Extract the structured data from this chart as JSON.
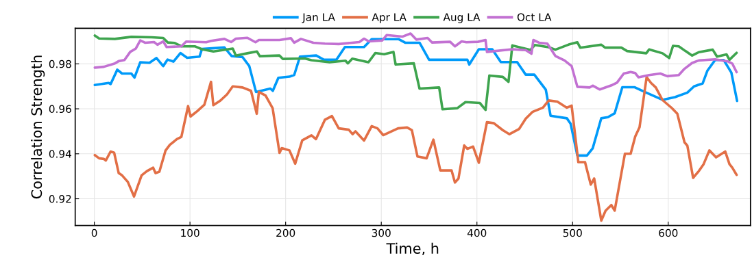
{
  "chart_data": {
    "type": "line",
    "xlabel": "Time, h",
    "ylabel": "Correlation Strength",
    "xlim": [
      -20,
      686
    ],
    "ylim": [
      0.9081,
      0.9958
    ],
    "xticks": [
      0,
      100,
      200,
      300,
      400,
      500,
      600
    ],
    "yticks": [
      0.92,
      0.94,
      0.96,
      0.98
    ],
    "grid": true,
    "legend": "top",
    "line_style": "solid",
    "marker": "none",
    "series": [
      {
        "name": "Jan LA",
        "color": "#009af9",
        "x": [
          0.5,
          15,
          17,
          24,
          29,
          38.6,
          42,
          48,
          57.7,
          65,
          72,
          76.6,
          82.7,
          90,
          97,
          110,
          112.5,
          136,
          143.5,
          155,
          162,
          169,
          184,
          186.6,
          192.4,
          204,
          209,
          215,
          232,
          240,
          253,
          262,
          282,
          290,
          318,
          325,
          340,
          350,
          390,
          392,
          402,
          416,
          425,
          442,
          451,
          460,
          472,
          477,
          494,
          498,
          505,
          515,
          521,
          530,
          537,
          544,
          552,
          565,
          577,
          594,
          607,
          620,
          627,
          636,
          641,
          649,
          658,
          666,
          672
        ],
        "values": [
          0.9706,
          0.9715,
          0.971,
          0.9774,
          0.9757,
          0.9757,
          0.9739,
          0.9807,
          0.9805,
          0.9826,
          0.979,
          0.9819,
          0.981,
          0.9848,
          0.9827,
          0.9832,
          0.9866,
          0.9873,
          0.9835,
          0.983,
          0.979,
          0.9675,
          0.969,
          0.968,
          0.9738,
          0.9743,
          0.9751,
          0.9832,
          0.9837,
          0.9818,
          0.9818,
          0.9875,
          0.9875,
          0.991,
          0.991,
          0.9894,
          0.9894,
          0.9818,
          0.9818,
          0.9797,
          0.9865,
          0.9865,
          0.9808,
          0.9808,
          0.9752,
          0.9752,
          0.9685,
          0.9569,
          0.9558,
          0.9533,
          0.9392,
          0.9392,
          0.9424,
          0.9558,
          0.9563,
          0.958,
          0.9696,
          0.9696,
          0.9672,
          0.964,
          0.9652,
          0.9672,
          0.97,
          0.9713,
          0.977,
          0.9817,
          0.9817,
          0.9761,
          0.9635
        ]
      },
      {
        "name": "Apr LA",
        "color": "#e26f46",
        "x": [
          0.5,
          5,
          10,
          12,
          17,
          20.7,
          25.5,
          29,
          35,
          41.5,
          49.4,
          55,
          61.5,
          64,
          68,
          74.4,
          79,
          86.3,
          91,
          98,
          100.6,
          107.7,
          115,
          122,
          124.4,
          131.6,
          138.7,
          144.7,
          155,
          163.8,
          169.8,
          172,
          179,
          186.4,
          193.6,
          196,
          204,
          210,
          217.4,
          227,
          231.7,
          241,
          248.4,
          255.5,
          266,
          270,
          273,
          282,
          290,
          296,
          302,
          317.5,
          327,
          332,
          337.8,
          347.4,
          354.5,
          361.7,
          373.5,
          377,
          380.7,
          386.7,
          390,
          396,
          402,
          410.5,
          417.7,
          427,
          434,
          444,
          451,
          458,
          469,
          475,
          484,
          494,
          499,
          506,
          513,
          519,
          522.6,
          530,
          534.5,
          540.5,
          544,
          554.7,
          560.7,
          565.5,
          570,
          577.4,
          582,
          587,
          594,
          603.6,
          609.5,
          617,
          620,
          626,
          632,
          637,
          643,
          650,
          659.6,
          664,
          667,
          671.5
        ],
        "values": [
          0.9394,
          0.938,
          0.9377,
          0.937,
          0.941,
          0.9405,
          0.9314,
          0.9304,
          0.9275,
          0.921,
          0.9304,
          0.9323,
          0.9338,
          0.9314,
          0.932,
          0.9414,
          0.944,
          0.9465,
          0.9475,
          0.9612,
          0.9566,
          0.959,
          0.9618,
          0.972,
          0.9616,
          0.9636,
          0.9664,
          0.97,
          0.9695,
          0.968,
          0.9578,
          0.9675,
          0.9659,
          0.9603,
          0.9404,
          0.9425,
          0.9415,
          0.9356,
          0.946,
          0.9482,
          0.9465,
          0.9551,
          0.9568,
          0.9513,
          0.9507,
          0.9487,
          0.95,
          0.9459,
          0.9523,
          0.9513,
          0.9483,
          0.9513,
          0.9517,
          0.9505,
          0.9388,
          0.938,
          0.9463,
          0.9326,
          0.9326,
          0.9272,
          0.929,
          0.9437,
          0.9422,
          0.9432,
          0.936,
          0.9541,
          0.9536,
          0.9505,
          0.9487,
          0.951,
          0.9556,
          0.9586,
          0.9605,
          0.9637,
          0.9632,
          0.9605,
          0.9614,
          0.9363,
          0.9363,
          0.9263,
          0.929,
          0.9103,
          0.9147,
          0.9172,
          0.9147,
          0.94,
          0.94,
          0.9477,
          0.9518,
          0.9741,
          0.9715,
          0.9695,
          0.9639,
          0.9604,
          0.9578,
          0.9451,
          0.9436,
          0.9293,
          0.9323,
          0.9354,
          0.9415,
          0.9384,
          0.941,
          0.9354,
          0.9338,
          0.9306
        ]
      },
      {
        "name": "Aug LA",
        "color": "#3ea44e",
        "x": [
          0.5,
          5,
          21.5,
          38.6,
          60,
          72,
          76.8,
          84,
          91,
          105,
          112.5,
          124.5,
          144.7,
          148,
          160,
          170,
          173,
          193.6,
          197,
          220,
          227,
          246,
          262.6,
          265,
          269.7,
          286.6,
          293.7,
          303,
          312.7,
          315,
          334,
          340,
          360.5,
          364,
          379.5,
          388,
          403,
          409,
          413,
          427,
          433,
          437,
          456,
          460.5,
          475,
          482,
          496,
          505,
          508,
          530,
          534,
          551,
          557,
          577,
          580,
          594,
          601,
          605,
          611,
          618,
          625,
          632,
          646.5,
          651,
          661,
          664,
          671.5
        ],
        "values": [
          0.9926,
          0.9913,
          0.9911,
          0.992,
          0.9918,
          0.9915,
          0.9895,
          0.9893,
          0.9878,
          0.9878,
          0.9865,
          0.9855,
          0.9868,
          0.9837,
          0.9847,
          0.9855,
          0.9834,
          0.9837,
          0.9822,
          0.9824,
          0.9816,
          0.9807,
          0.9814,
          0.9802,
          0.9823,
          0.9807,
          0.9848,
          0.9843,
          0.9853,
          0.9797,
          0.9802,
          0.969,
          0.9695,
          0.9598,
          0.9603,
          0.963,
          0.9626,
          0.9595,
          0.9748,
          0.9742,
          0.972,
          0.9882,
          0.9862,
          0.9884,
          0.9874,
          0.9863,
          0.9886,
          0.9896,
          0.9872,
          0.9885,
          0.9872,
          0.9872,
          0.9857,
          0.9847,
          0.9864,
          0.9847,
          0.9826,
          0.988,
          0.9878,
          0.9857,
          0.9837,
          0.9852,
          0.9863,
          0.9832,
          0.9842,
          0.9818,
          0.9849
        ]
      },
      {
        "name": "Oct LA",
        "color": "#c271d2",
        "x": [
          0.5,
          10,
          21.5,
          25.5,
          31.5,
          37.5,
          43.4,
          48,
          53,
          62.4,
          66,
          72,
          75.6,
          91,
          96,
          117,
          122,
          136,
          143,
          148,
          160,
          168.5,
          172,
          193.6,
          205.5,
          209,
          216,
          229,
          241,
          255.5,
          277,
          282,
          287,
          301,
          305.6,
          322,
          330.6,
          336.6,
          348.4,
          353,
          372,
          377,
          384,
          389,
          401,
          409,
          410.5,
          437,
          451,
          457,
          459,
          465,
          473.6,
          482,
          491.6,
          499,
          505,
          518,
          521,
          528.5,
          541.6,
          546.4,
          553.5,
          560.7,
          565.5,
          569,
          580,
          591.7,
          599,
          611,
          617,
          625,
          632,
          649,
          663,
          667,
          671.5
        ],
        "values": [
          0.9783,
          0.9787,
          0.9802,
          0.9812,
          0.9817,
          0.9853,
          0.9868,
          0.9904,
          0.9894,
          0.9897,
          0.9885,
          0.99,
          0.9875,
          0.9878,
          0.9899,
          0.9896,
          0.9902,
          0.9911,
          0.9897,
          0.9912,
          0.9916,
          0.9896,
          0.9906,
          0.9906,
          0.9914,
          0.9894,
          0.9911,
          0.9894,
          0.989,
          0.9888,
          0.9897,
          0.9912,
          0.99,
          0.9904,
          0.9928,
          0.9921,
          0.9935,
          0.9908,
          0.9915,
          0.9895,
          0.9898,
          0.9878,
          0.99,
          0.9896,
          0.9898,
          0.9906,
          0.9853,
          0.9865,
          0.9861,
          0.9845,
          0.9906,
          0.9894,
          0.989,
          0.9835,
          0.9815,
          0.979,
          0.9698,
          0.9695,
          0.9703,
          0.9686,
          0.9706,
          0.9716,
          0.9757,
          0.9764,
          0.9759,
          0.974,
          0.975,
          0.9757,
          0.9745,
          0.975,
          0.9778,
          0.9804,
          0.9815,
          0.982,
          0.981,
          0.9801,
          0.9763
        ]
      }
    ]
  }
}
